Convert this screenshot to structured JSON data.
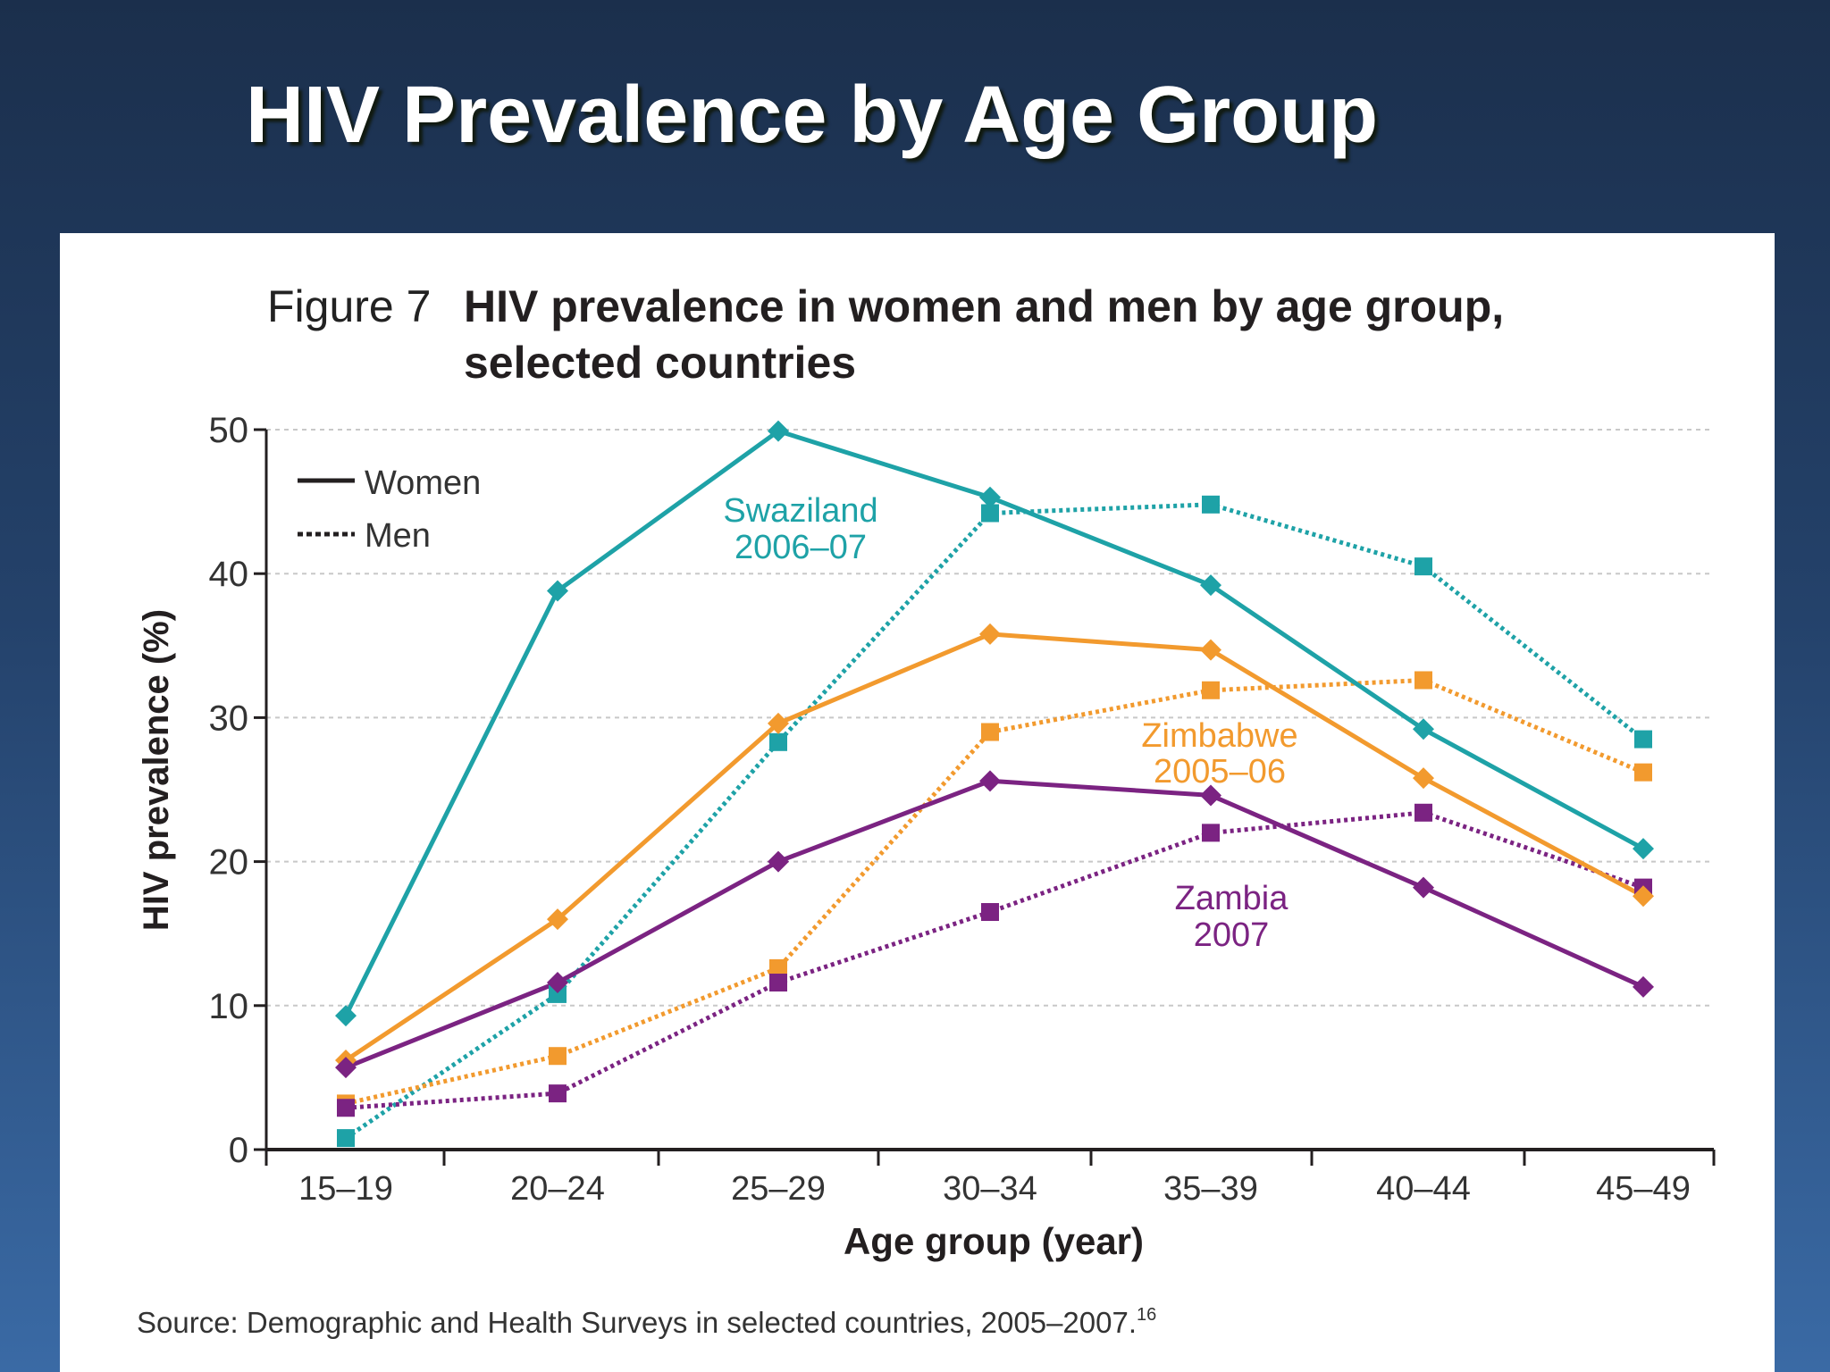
{
  "slide": {
    "title": "HIV Prevalence by Age Group"
  },
  "chart_data": {
    "type": "line",
    "figure_label": "Figure 7",
    "title_line1": "HIV prevalence in women and men by age group,",
    "title_line2": "selected countries",
    "xlabel": "Age group (year)",
    "ylabel": "HIV prevalence (%)",
    "ylim": [
      0,
      50
    ],
    "yticks": [
      0,
      10,
      20,
      30,
      40,
      50
    ],
    "grid": true,
    "categories": [
      "15–19",
      "20–24",
      "25–29",
      "30–34",
      "35–39",
      "40–44",
      "45–49"
    ],
    "legend": {
      "placement": "top-left",
      "women_label": "Women",
      "men_label": "Men"
    },
    "countries": [
      {
        "key": "swaziland",
        "label_line1": "Swaziland",
        "label_line2": "2006–07",
        "color": "#1ea2a7"
      },
      {
        "key": "zimbabwe",
        "label_line1": "Zimbabwe",
        "label_line2": "2005–06",
        "color": "#f29a2e"
      },
      {
        "key": "zambia",
        "label_line1": "Zambia",
        "label_line2": "2007",
        "color": "#7b2382"
      }
    ],
    "series": [
      {
        "country": "swaziland",
        "sex": "women",
        "values": [
          9.3,
          38.8,
          49.9,
          45.3,
          39.2,
          29.2,
          20.9
        ]
      },
      {
        "country": "swaziland",
        "sex": "men",
        "values": [
          0.8,
          10.8,
          28.3,
          44.2,
          44.8,
          40.5,
          28.5
        ]
      },
      {
        "country": "zimbabwe",
        "sex": "women",
        "values": [
          6.2,
          16.0,
          29.6,
          35.8,
          34.7,
          25.8,
          17.6
        ]
      },
      {
        "country": "zimbabwe",
        "sex": "men",
        "values": [
          3.2,
          6.5,
          12.6,
          29.0,
          31.9,
          32.6,
          26.2
        ]
      },
      {
        "country": "zambia",
        "sex": "women",
        "values": [
          5.7,
          11.6,
          20.0,
          25.6,
          24.6,
          18.2,
          11.3
        ]
      },
      {
        "country": "zambia",
        "sex": "men",
        "values": [
          2.9,
          3.9,
          11.6,
          16.5,
          22.0,
          23.4,
          18.2
        ]
      }
    ],
    "source": "Source: Demographic and Health Surveys in selected countries, 2005–2007.",
    "source_superscript": "16"
  }
}
